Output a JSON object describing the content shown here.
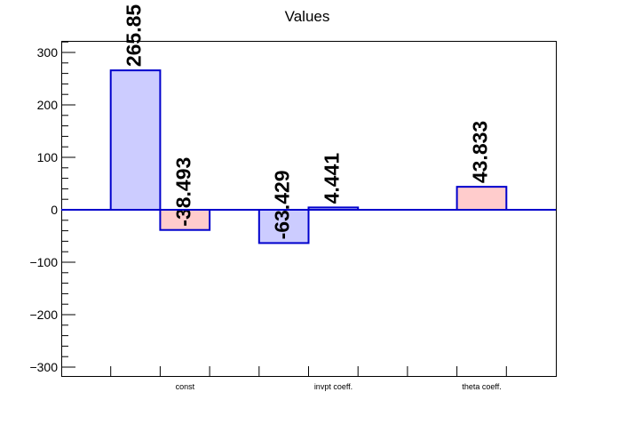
{
  "chart_data": {
    "type": "bar",
    "title": "Values",
    "xlabel": "",
    "ylabel": "",
    "ylim": [
      -320,
      320
    ],
    "yticks": [
      -300,
      -200,
      -100,
      0,
      100,
      200,
      300
    ],
    "ytick_labels": [
      "−300",
      "−200",
      "−100",
      "0",
      "100",
      "200",
      "300"
    ],
    "categories": [
      "const",
      "invpt coeff.",
      "theta coeff."
    ],
    "series_colors": {
      "blue_fill": "#ccccff",
      "pink_fill": "#ffcccc",
      "outline": "#0000cc"
    },
    "bars": [
      {
        "category": "const",
        "slot": 0,
        "value": 265.85,
        "label": "265.85",
        "fill": "blue"
      },
      {
        "category": "const",
        "slot": 1,
        "value": -38.493,
        "label": "-38.493",
        "fill": "pink"
      },
      {
        "category": "invpt coeff.",
        "slot": 0,
        "value": -63.429,
        "label": "-63.429",
        "fill": "blue"
      },
      {
        "category": "invpt coeff.",
        "slot": 1,
        "value": 4.441,
        "label": "4.441",
        "fill": "blue"
      },
      {
        "category": "theta coeff.",
        "slot": 1,
        "value": 43.833,
        "label": "43.833",
        "fill": "pink"
      }
    ],
    "grid": false,
    "legend": "none"
  }
}
